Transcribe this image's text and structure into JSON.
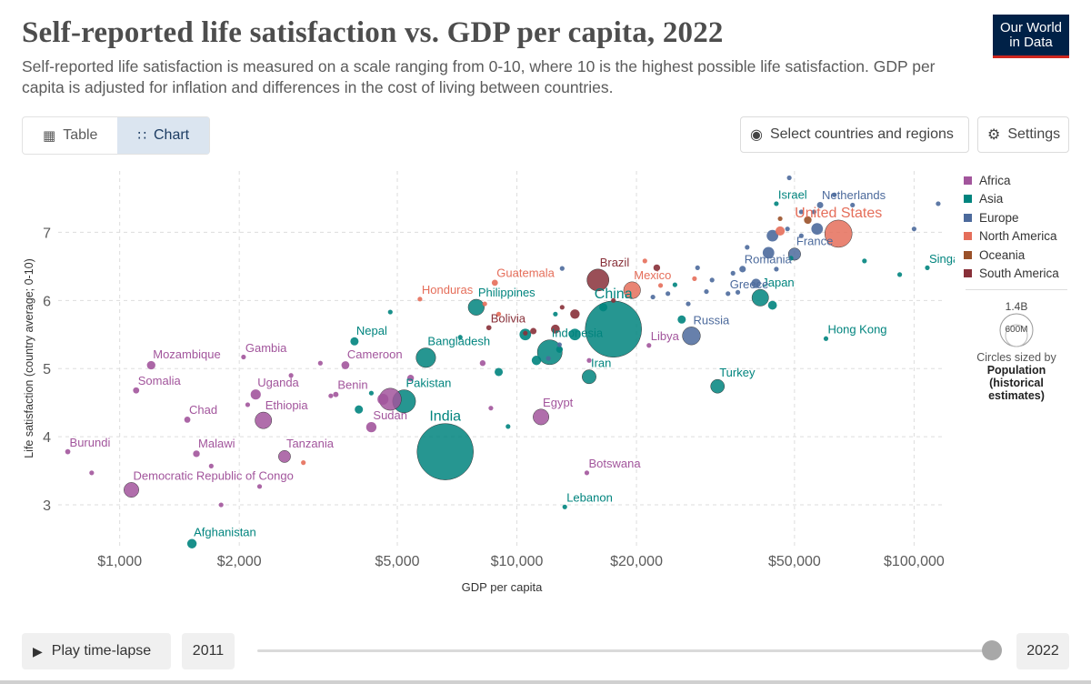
{
  "header": {
    "title": "Self-reported life satisfaction vs. GDP per capita, 2022",
    "subtitle": "Self-reported life satisfaction is measured on a scale ranging from 0-10, where 10 is the highest possible life satisfaction. GDP per capita is adjusted for inflation and differences in the cost of living between countries.",
    "logo_line1": "Our World",
    "logo_line2": "in Data"
  },
  "toolbar": {
    "tab_table": "Table",
    "tab_chart": "Chart",
    "select_label": "Select countries and regions",
    "settings_label": "Settings"
  },
  "legend": {
    "items": [
      {
        "label": "Africa",
        "color": "#a2559c"
      },
      {
        "label": "Asia",
        "color": "#00847e"
      },
      {
        "label": "Europe",
        "color": "#4c6a9c"
      },
      {
        "label": "North America",
        "color": "#e56e5a"
      },
      {
        "label": "Oceania",
        "color": "#9a5129"
      },
      {
        "label": "South America",
        "color": "#883039"
      }
    ],
    "size_big": "1.4B",
    "size_small": "600M",
    "size_note": "Circles sized by",
    "size_bold1": "Population",
    "size_bold2": "(historical",
    "size_bold3": "estimates)"
  },
  "footer": {
    "play_label": "Play time-lapse",
    "start_year": "2011",
    "end_year": "2022"
  },
  "chart_data": {
    "type": "scatter",
    "title": "Self-reported life satisfaction vs. GDP per capita, 2022",
    "xlabel": "GDP per capita",
    "ylabel": "Life satisfaction (country average; 0-10)",
    "xscale": "log",
    "xlim": [
      700,
      120000
    ],
    "ylim": [
      2.4,
      7.9
    ],
    "xticks": [
      1000,
      2000,
      5000,
      10000,
      20000,
      50000,
      100000
    ],
    "xtick_labels": [
      "$1,000",
      "$2,000",
      "$5,000",
      "$10,000",
      "$20,000",
      "$50,000",
      "$100,000"
    ],
    "yticks": [
      3,
      4,
      5,
      6,
      7
    ],
    "grid": true,
    "legend_position": "right",
    "points": [
      {
        "label": "Burundi",
        "x": 740,
        "y": 3.78,
        "pop": 12,
        "c": "Africa"
      },
      {
        "label": "Democratic Republic of Congo",
        "x": 1070,
        "y": 3.22,
        "pop": 99,
        "c": "Africa"
      },
      {
        "label": "Mozambique",
        "x": 1200,
        "y": 5.05,
        "pop": 32,
        "c": "Africa"
      },
      {
        "label": "Somalia",
        "x": 1100,
        "y": 4.68,
        "pop": 17,
        "c": "Africa"
      },
      {
        "label": "Chad",
        "x": 1480,
        "y": 4.25,
        "pop": 17,
        "c": "Africa"
      },
      {
        "label": "Malawi",
        "x": 1560,
        "y": 3.75,
        "pop": 20,
        "c": "Africa"
      },
      {
        "label": "Gambia",
        "x": 2050,
        "y": 5.17,
        "pop": 3,
        "c": "Africa"
      },
      {
        "label": "Uganda",
        "x": 2200,
        "y": 4.62,
        "pop": 46,
        "c": "Africa"
      },
      {
        "label": "Ethiopia",
        "x": 2300,
        "y": 4.24,
        "pop": 123,
        "c": "Africa"
      },
      {
        "label": "Tanzania",
        "x": 2600,
        "y": 3.71,
        "pop": 65,
        "c": "Africa"
      },
      {
        "label": "Benin",
        "x": 3500,
        "y": 4.62,
        "pop": 13,
        "c": "Africa"
      },
      {
        "label": "Cameroon",
        "x": 3700,
        "y": 5.05,
        "pop": 28,
        "c": "Africa"
      },
      {
        "label": "Sudan",
        "x": 4300,
        "y": 4.14,
        "pop": 47,
        "c": "Africa"
      },
      {
        "label": "Egypt",
        "x": 11500,
        "y": 4.29,
        "pop": 111,
        "c": "Africa"
      },
      {
        "label": "Libya",
        "x": 21500,
        "y": 5.34,
        "pop": 7,
        "c": "Africa"
      },
      {
        "label": "Botswana",
        "x": 15000,
        "y": 3.47,
        "pop": 3,
        "c": "Africa"
      },
      {
        "label": "",
        "x": 4800,
        "y": 4.55,
        "pop": 218,
        "c": "Africa"
      },
      {
        "label": "",
        "x": 4600,
        "y": 4.55,
        "pop": 54,
        "c": "Africa"
      },
      {
        "label": "",
        "x": 5400,
        "y": 4.86,
        "pop": 20,
        "c": "Africa"
      },
      {
        "label": "",
        "x": 1700,
        "y": 3.57,
        "pop": 8,
        "c": "Africa"
      },
      {
        "label": "",
        "x": 1800,
        "y": 3.0,
        "pop": 8,
        "c": "Africa"
      },
      {
        "label": "",
        "x": 2100,
        "y": 4.47,
        "pop": 8,
        "c": "Africa"
      },
      {
        "label": "",
        "x": 2250,
        "y": 3.27,
        "pop": 8,
        "c": "Africa"
      },
      {
        "label": "",
        "x": 2700,
        "y": 4.9,
        "pop": 8,
        "c": "Africa"
      },
      {
        "label": "",
        "x": 3200,
        "y": 5.08,
        "pop": 8,
        "c": "Africa"
      },
      {
        "label": "",
        "x": 3400,
        "y": 4.6,
        "pop": 8,
        "c": "Africa"
      },
      {
        "label": "",
        "x": 8200,
        "y": 5.08,
        "pop": 15,
        "c": "Africa"
      },
      {
        "label": "",
        "x": 8600,
        "y": 4.42,
        "pop": 8,
        "c": "Africa"
      },
      {
        "label": "",
        "x": 15200,
        "y": 5.12,
        "pop": 8,
        "c": "Africa"
      },
      {
        "label": "",
        "x": 850,
        "y": 3.47,
        "pop": 8,
        "c": "Africa"
      },
      {
        "label": "India",
        "x": 6600,
        "y": 3.78,
        "pop": 1420,
        "c": "Asia"
      },
      {
        "label": "China",
        "x": 17500,
        "y": 5.58,
        "pop": 1420,
        "c": "Asia"
      },
      {
        "label": "Afghanistan",
        "x": 1520,
        "y": 2.43,
        "pop": 40,
        "c": "Asia"
      },
      {
        "label": "Nepal",
        "x": 3900,
        "y": 5.4,
        "pop": 30,
        "c": "Asia"
      },
      {
        "label": "Bangladesh",
        "x": 5900,
        "y": 5.16,
        "pop": 171,
        "c": "Asia"
      },
      {
        "label": "Pakistan",
        "x": 5200,
        "y": 4.52,
        "pop": 236,
        "c": "Asia"
      },
      {
        "label": "Philippines",
        "x": 7900,
        "y": 5.9,
        "pop": 115,
        "c": "Asia"
      },
      {
        "label": "Indonesia",
        "x": 12100,
        "y": 5.24,
        "pop": 275,
        "c": "Asia"
      },
      {
        "label": "Iran",
        "x": 15200,
        "y": 4.88,
        "pop": 88,
        "c": "Asia"
      },
      {
        "label": "Japan",
        "x": 41000,
        "y": 6.04,
        "pop": 124,
        "c": "Asia"
      },
      {
        "label": "Singapore",
        "x": 108000,
        "y": 6.48,
        "pop": 6,
        "c": "Asia"
      },
      {
        "label": "Hong Kong",
        "x": 60000,
        "y": 5.44,
        "pop": 7,
        "c": "Asia"
      },
      {
        "label": "Turkey",
        "x": 32000,
        "y": 4.74,
        "pop": 85,
        "c": "Asia"
      },
      {
        "label": "Israel",
        "x": 45000,
        "y": 7.42,
        "pop": 9,
        "c": "Asia"
      },
      {
        "label": "Lebanon",
        "x": 13200,
        "y": 2.97,
        "pop": 5,
        "c": "Asia"
      },
      {
        "label": "",
        "x": 4000,
        "y": 4.4,
        "pop": 30,
        "c": "Asia"
      },
      {
        "label": "",
        "x": 4800,
        "y": 5.83,
        "pop": 8,
        "c": "Asia"
      },
      {
        "label": "",
        "x": 9000,
        "y": 4.95,
        "pop": 30,
        "c": "Asia"
      },
      {
        "label": "",
        "x": 9500,
        "y": 4.15,
        "pop": 8,
        "c": "Asia"
      },
      {
        "label": "",
        "x": 10500,
        "y": 5.5,
        "pop": 60,
        "c": "Asia"
      },
      {
        "label": "",
        "x": 11200,
        "y": 5.12,
        "pop": 40,
        "c": "Asia"
      },
      {
        "label": "",
        "x": 12500,
        "y": 5.8,
        "pop": 8,
        "c": "Asia"
      },
      {
        "label": "",
        "x": 14000,
        "y": 5.5,
        "pop": 60,
        "c": "Asia"
      },
      {
        "label": "",
        "x": 16500,
        "y": 5.9,
        "pop": 30,
        "c": "Asia"
      },
      {
        "label": "",
        "x": 26000,
        "y": 5.72,
        "pop": 30,
        "c": "Asia"
      },
      {
        "label": "",
        "x": 44000,
        "y": 5.93,
        "pop": 35,
        "c": "Asia"
      },
      {
        "label": "",
        "x": 75000,
        "y": 6.58,
        "pop": 8,
        "c": "Asia"
      },
      {
        "label": "",
        "x": 92000,
        "y": 6.38,
        "pop": 8,
        "c": "Asia"
      },
      {
        "label": "",
        "x": 25000,
        "y": 6.23,
        "pop": 8,
        "c": "Asia"
      },
      {
        "label": "",
        "x": 4300,
        "y": 4.64,
        "pop": 8,
        "c": "Asia"
      },
      {
        "label": "",
        "x": 7200,
        "y": 5.46,
        "pop": 8,
        "c": "Asia"
      },
      {
        "label": "",
        "x": 12800,
        "y": 5.28,
        "pop": 20,
        "c": "Asia"
      },
      {
        "label": "",
        "x": 49000,
        "y": 6.62,
        "pop": 8,
        "c": "Asia"
      },
      {
        "label": "Netherlands",
        "x": 58000,
        "y": 7.4,
        "pop": 18,
        "c": "Europe"
      },
      {
        "label": "France",
        "x": 50000,
        "y": 6.68,
        "pop": 68,
        "c": "Europe"
      },
      {
        "label": "Romania",
        "x": 37000,
        "y": 6.46,
        "pop": 19,
        "c": "Europe"
      },
      {
        "label": "Greece",
        "x": 34000,
        "y": 6.1,
        "pop": 10,
        "c": "Europe"
      },
      {
        "label": "Russia",
        "x": 27500,
        "y": 5.48,
        "pop": 144,
        "c": "Europe"
      },
      {
        "label": "",
        "x": 48500,
        "y": 7.8,
        "pop": 8,
        "c": "Europe"
      },
      {
        "label": "",
        "x": 56000,
        "y": 7.3,
        "pop": 8,
        "c": "Europe"
      },
      {
        "label": "",
        "x": 63000,
        "y": 7.55,
        "pop": 8,
        "c": "Europe"
      },
      {
        "label": "",
        "x": 52000,
        "y": 7.3,
        "pop": 8,
        "c": "Europe"
      },
      {
        "label": "",
        "x": 57000,
        "y": 7.05,
        "pop": 60,
        "c": "Europe"
      },
      {
        "label": "",
        "x": 44000,
        "y": 6.95,
        "pop": 60,
        "c": "Europe"
      },
      {
        "label": "",
        "x": 43000,
        "y": 6.7,
        "pop": 60,
        "c": "Europe"
      },
      {
        "label": "",
        "x": 38000,
        "y": 6.78,
        "pop": 8,
        "c": "Europe"
      },
      {
        "label": "",
        "x": 40000,
        "y": 6.25,
        "pop": 40,
        "c": "Europe"
      },
      {
        "label": "",
        "x": 45000,
        "y": 6.46,
        "pop": 8,
        "c": "Europe"
      },
      {
        "label": "",
        "x": 35000,
        "y": 6.4,
        "pop": 8,
        "c": "Europe"
      },
      {
        "label": "",
        "x": 30000,
        "y": 6.13,
        "pop": 8,
        "c": "Europe"
      },
      {
        "label": "",
        "x": 31000,
        "y": 6.3,
        "pop": 8,
        "c": "Europe"
      },
      {
        "label": "",
        "x": 22000,
        "y": 6.05,
        "pop": 8,
        "c": "Europe"
      },
      {
        "label": "",
        "x": 27000,
        "y": 5.95,
        "pop": 8,
        "c": "Europe"
      },
      {
        "label": "",
        "x": 28500,
        "y": 6.48,
        "pop": 8,
        "c": "Europe"
      },
      {
        "label": "",
        "x": 36000,
        "y": 6.12,
        "pop": 8,
        "c": "Europe"
      },
      {
        "label": "",
        "x": 52000,
        "y": 6.95,
        "pop": 8,
        "c": "Europe"
      },
      {
        "label": "",
        "x": 70000,
        "y": 7.4,
        "pop": 8,
        "c": "Europe"
      },
      {
        "label": "",
        "x": 100000,
        "y": 7.05,
        "pop": 8,
        "c": "Europe"
      },
      {
        "label": "",
        "x": 115000,
        "y": 7.42,
        "pop": 8,
        "c": "Europe"
      },
      {
        "label": "",
        "x": 48000,
        "y": 7.05,
        "pop": 8,
        "c": "Europe"
      },
      {
        "label": "",
        "x": 13000,
        "y": 6.47,
        "pop": 8,
        "c": "Europe"
      },
      {
        "label": "",
        "x": 12000,
        "y": 5.15,
        "pop": 8,
        "c": "Europe"
      },
      {
        "label": "",
        "x": 12800,
        "y": 5.35,
        "pop": 8,
        "c": "Europe"
      },
      {
        "label": "",
        "x": 24000,
        "y": 6.1,
        "pop": 8,
        "c": "Europe"
      },
      {
        "label": "United States",
        "x": 64500,
        "y": 6.98,
        "pop": 333,
        "c": "North America"
      },
      {
        "label": "Mexico",
        "x": 19500,
        "y": 6.15,
        "pop": 127,
        "c": "North America"
      },
      {
        "label": "Guatemala",
        "x": 8800,
        "y": 6.26,
        "pop": 17,
        "c": "North America"
      },
      {
        "label": "Honduras",
        "x": 5700,
        "y": 6.02,
        "pop": 10,
        "c": "North America"
      },
      {
        "label": "",
        "x": 2900,
        "y": 3.62,
        "pop": 8,
        "c": "North America"
      },
      {
        "label": "",
        "x": 8300,
        "y": 5.95,
        "pop": 8,
        "c": "North America"
      },
      {
        "label": "",
        "x": 21000,
        "y": 6.58,
        "pop": 8,
        "c": "North America"
      },
      {
        "label": "",
        "x": 28000,
        "y": 6.32,
        "pop": 8,
        "c": "North America"
      },
      {
        "label": "",
        "x": 46000,
        "y": 7.02,
        "pop": 38,
        "c": "North America"
      },
      {
        "label": "",
        "x": 9000,
        "y": 5.8,
        "pop": 8,
        "c": "North America"
      },
      {
        "label": "",
        "x": 23000,
        "y": 6.22,
        "pop": 8,
        "c": "North America"
      },
      {
        "label": "",
        "x": 54000,
        "y": 7.18,
        "pop": 26,
        "c": "Oceania"
      },
      {
        "label": "",
        "x": 46000,
        "y": 7.2,
        "pop": 5,
        "c": "Oceania"
      },
      {
        "label": "Brazil",
        "x": 16000,
        "y": 6.3,
        "pop": 215,
        "c": "South America"
      },
      {
        "label": "Bolivia",
        "x": 8500,
        "y": 5.6,
        "pop": 12,
        "c": "South America"
      },
      {
        "label": "",
        "x": 14000,
        "y": 5.8,
        "pop": 40,
        "c": "South America"
      },
      {
        "label": "",
        "x": 22500,
        "y": 6.48,
        "pop": 20,
        "c": "South America"
      },
      {
        "label": "",
        "x": 12500,
        "y": 5.58,
        "pop": 35,
        "c": "South America"
      },
      {
        "label": "",
        "x": 11000,
        "y": 5.55,
        "pop": 18,
        "c": "South America"
      },
      {
        "label": "",
        "x": 13000,
        "y": 5.9,
        "pop": 8,
        "c": "South America"
      },
      {
        "label": "",
        "x": 17500,
        "y": 6.0,
        "pop": 8,
        "c": "South America"
      },
      {
        "label": "",
        "x": 10500,
        "y": 5.52,
        "pop": 8,
        "c": "South America"
      }
    ]
  }
}
